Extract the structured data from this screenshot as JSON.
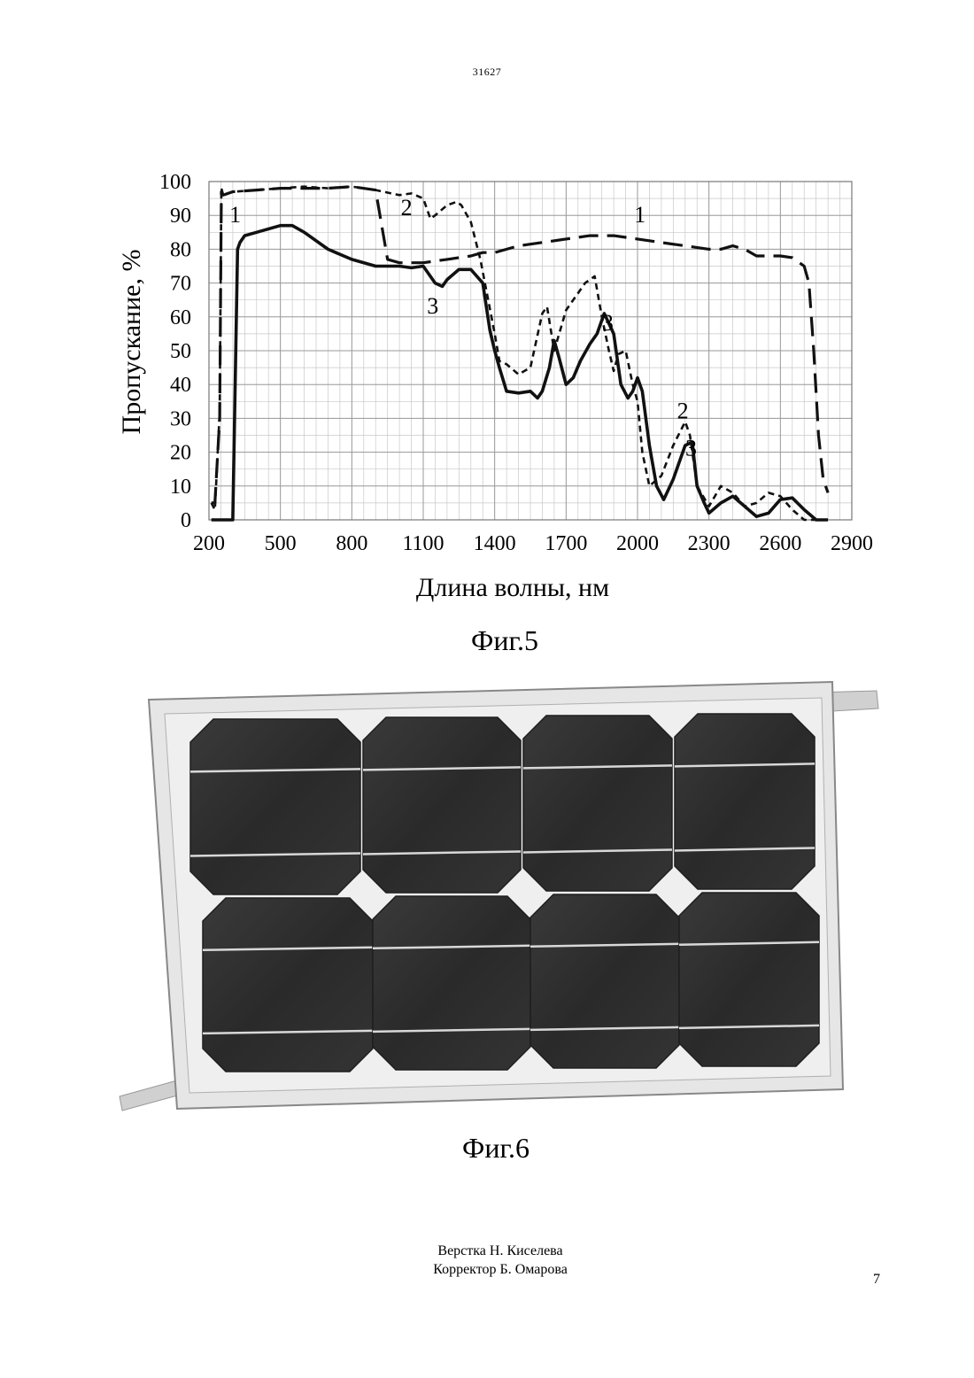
{
  "header": {
    "patent_number": "31627"
  },
  "figure5": {
    "caption": "Фиг.5",
    "chart_data": {
      "type": "line",
      "xlabel": "Длина волны, нм",
      "ylabel": "Пропускание, %",
      "xlim": [
        200,
        2900
      ],
      "ylim": [
        0,
        100
      ],
      "x_ticks": [
        200,
        500,
        800,
        1100,
        1400,
        1700,
        2000,
        2300,
        2600,
        2900
      ],
      "y_ticks": [
        0,
        10,
        20,
        30,
        40,
        50,
        60,
        70,
        80,
        90,
        100
      ],
      "grid": true,
      "series": [
        {
          "name": "1",
          "style": "long-dash",
          "x": [
            210,
            225,
            245,
            252,
            260,
            300,
            400,
            500,
            600,
            700,
            800,
            900,
            950,
            1000,
            1100,
            1200,
            1300,
            1350,
            1400,
            1500,
            1600,
            1700,
            1800,
            1900,
            2000,
            2100,
            2200,
            2300,
            2350,
            2400,
            2450,
            2500,
            2600,
            2650,
            2700,
            2720,
            2740,
            2760,
            2780,
            2800
          ],
          "y": [
            5,
            5,
            30,
            97,
            96,
            97,
            97.5,
            98,
            98,
            98,
            98.5,
            97.5,
            77,
            76,
            76,
            77,
            78,
            79,
            79,
            81,
            82,
            83,
            84,
            84,
            83,
            82,
            81,
            80,
            80,
            81,
            80,
            78,
            78,
            77.5,
            75,
            70,
            50,
            25,
            12,
            8
          ]
        },
        {
          "name": "2",
          "style": "short-dash",
          "x": [
            210,
            225,
            245,
            252,
            260,
            300,
            400,
            500,
            600,
            700,
            800,
            900,
            1000,
            1050,
            1100,
            1130,
            1150,
            1200,
            1240,
            1260,
            1300,
            1340,
            1400,
            1420,
            1450,
            1500,
            1550,
            1600,
            1620,
            1650,
            1700,
            1740,
            1780,
            1820,
            1850,
            1880,
            1900,
            1920,
            1950,
            1980,
            2000,
            2020,
            2050,
            2100,
            2150,
            2200,
            2220,
            2250,
            2300,
            2350,
            2400,
            2450,
            2500,
            2550,
            2600,
            2650,
            2700,
            2750
          ],
          "y": [
            5,
            3,
            32,
            98,
            96,
            97,
            97.5,
            98,
            98.5,
            98,
            98.5,
            97.5,
            96,
            96.5,
            95,
            89,
            90,
            93,
            94,
            93,
            88,
            77,
            55,
            47,
            46,
            43,
            45,
            61,
            63,
            50,
            62,
            66,
            70,
            72,
            60,
            50,
            44,
            49,
            50,
            40,
            35,
            20,
            10,
            13,
            22,
            29,
            25,
            10,
            4,
            10,
            8,
            4,
            5,
            8,
            7,
            3,
            0,
            0
          ]
        },
        {
          "name": "3",
          "style": "solid",
          "x": [
            210,
            290,
            300,
            320,
            330,
            350,
            400,
            500,
            550,
            600,
            700,
            800,
            900,
            1000,
            1050,
            1100,
            1150,
            1180,
            1200,
            1250,
            1300,
            1350,
            1380,
            1400,
            1420,
            1450,
            1500,
            1550,
            1580,
            1600,
            1630,
            1650,
            1670,
            1700,
            1730,
            1760,
            1800,
            1830,
            1860,
            1900,
            1930,
            1960,
            1980,
            2000,
            2020,
            2050,
            2080,
            2110,
            2150,
            2200,
            2230,
            2250,
            2280,
            2300,
            2350,
            2400,
            2450,
            2500,
            2550,
            2600,
            2650,
            2700,
            2750,
            2800
          ],
          "y": [
            0,
            0,
            0,
            80,
            82,
            84,
            85,
            87,
            87,
            85,
            80,
            77,
            75,
            75,
            74.5,
            75,
            70,
            69,
            71,
            74,
            74,
            70,
            56,
            50,
            45,
            38,
            37.5,
            38,
            36,
            38,
            45,
            53,
            48,
            40,
            42,
            47,
            52,
            55,
            61,
            55,
            40,
            36,
            38,
            42,
            38,
            22,
            10,
            6,
            12,
            22,
            23,
            10,
            5,
            2,
            5,
            7,
            4,
            1,
            2,
            6,
            6.5,
            3,
            0,
            0
          ]
        }
      ],
      "annotations": [
        {
          "text": "1",
          "x": 310,
          "y": 88
        },
        {
          "text": "2",
          "x": 1030,
          "y": 90
        },
        {
          "text": "1",
          "x": 2010,
          "y": 88
        },
        {
          "text": "3",
          "x": 1140,
          "y": 61
        },
        {
          "text": "3",
          "x": 1875,
          "y": 56
        },
        {
          "text": "2",
          "x": 2190,
          "y": 30
        },
        {
          "text": "3",
          "x": 2225,
          "y": 19
        }
      ]
    }
  },
  "figure6": {
    "caption": "Фиг.6"
  },
  "credits": {
    "layout": "Верстка Н. Киселева",
    "corrector": "Корректор Б. Омарова"
  },
  "page_number": "7"
}
